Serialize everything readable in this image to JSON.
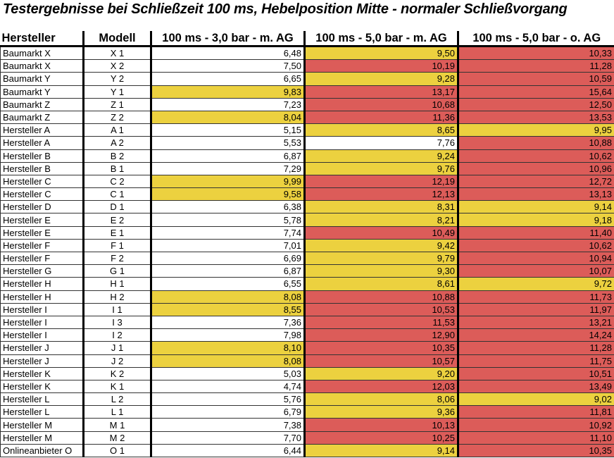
{
  "title": "Testergebnisse bei Schließzeit 100 ms, Hebelposition Mitte - normaler Schließvorgang",
  "colors": {
    "white": "#ffffff",
    "yellow": "#ecd13f",
    "red": "#dc5c59"
  },
  "headers": [
    "Hersteller",
    "Modell",
    "100 ms - 3,0 bar - m. AG",
    "100 ms - 5,0 bar - m. AG",
    "100 ms - 5,0 bar - o. AG"
  ],
  "rows": [
    [
      "Baumarkt X",
      "X 1",
      "6,48",
      "9,50",
      "10,33"
    ],
    [
      "Baumarkt X",
      "X 2",
      "7,50",
      "10,19",
      "11,28"
    ],
    [
      "Baumarkt Y",
      "Y 2",
      "6,65",
      "9,28",
      "10,59"
    ],
    [
      "Baumarkt Y",
      "Y 1",
      "9,83",
      "13,17",
      "15,64"
    ],
    [
      "Baumarkt Z",
      "Z 1",
      "7,23",
      "10,68",
      "12,50"
    ],
    [
      "Baumarkt Z",
      "Z 2",
      "8,04",
      "11,36",
      "13,53"
    ],
    [
      "Hersteller A",
      "A 1",
      "5,15",
      "8,65",
      "9,95"
    ],
    [
      "Hersteller A",
      "A 2",
      "5,53",
      "7,76",
      "10,88"
    ],
    [
      "Hersteller B",
      "B 2",
      "6,87",
      "9,24",
      "10,62"
    ],
    [
      "Hersteller B",
      "B 1",
      "7,29",
      "9,76",
      "10,96"
    ],
    [
      "Hersteller C",
      "C 2",
      "9,99",
      "12,19",
      "12,72"
    ],
    [
      "Hersteller C",
      "C 1",
      "9,58",
      "12,13",
      "13,13"
    ],
    [
      "Hersteller D",
      "D 1",
      "6,38",
      "8,31",
      "9,14"
    ],
    [
      "Hersteller E",
      "E 2",
      "5,78",
      "8,21",
      "9,18"
    ],
    [
      "Hersteller E",
      "E 1",
      "7,74",
      "10,49",
      "11,40"
    ],
    [
      "Hersteller F",
      "F 1",
      "7,01",
      "9,42",
      "10,62"
    ],
    [
      "Hersteller F",
      "F 2",
      "6,69",
      "9,79",
      "10,94"
    ],
    [
      "Hersteller G",
      "G 1",
      "6,87",
      "9,30",
      "10,07"
    ],
    [
      "Hersteller H",
      "H 1",
      "6,55",
      "8,61",
      "9,72"
    ],
    [
      "Hersteller H",
      "H 2",
      "8,08",
      "10,88",
      "11,73"
    ],
    [
      "Hersteller I",
      "I 1",
      "8,55",
      "10,53",
      "11,97"
    ],
    [
      "Hersteller I",
      "I 3",
      "7,36",
      "11,53",
      "13,21"
    ],
    [
      "Hersteller I",
      "I 2",
      "7,98",
      "12,90",
      "14,24"
    ],
    [
      "Hersteller J",
      "J 1",
      "8,10",
      "10,35",
      "11,28"
    ],
    [
      "Hersteller J",
      "J 2",
      "8,08",
      "10,57",
      "11,75"
    ],
    [
      "Hersteller K",
      "K 2",
      "5,03",
      "9,20",
      "10,51"
    ],
    [
      "Hersteller K",
      "K 1",
      "4,74",
      "12,03",
      "13,49"
    ],
    [
      "Hersteller L",
      "L 2",
      "5,76",
      "8,06",
      "9,02"
    ],
    [
      "Hersteller L",
      "L 1",
      "6,79",
      "9,36",
      "11,81"
    ],
    [
      "Hersteller M",
      "M 1",
      "7,38",
      "10,13",
      "10,92"
    ],
    [
      "Hersteller M",
      "M 2",
      "7,70",
      "10,25",
      "11,10"
    ],
    [
      "Onlineanbieter O",
      "O 1",
      "6,44",
      "9,14",
      "10,35"
    ]
  ]
}
